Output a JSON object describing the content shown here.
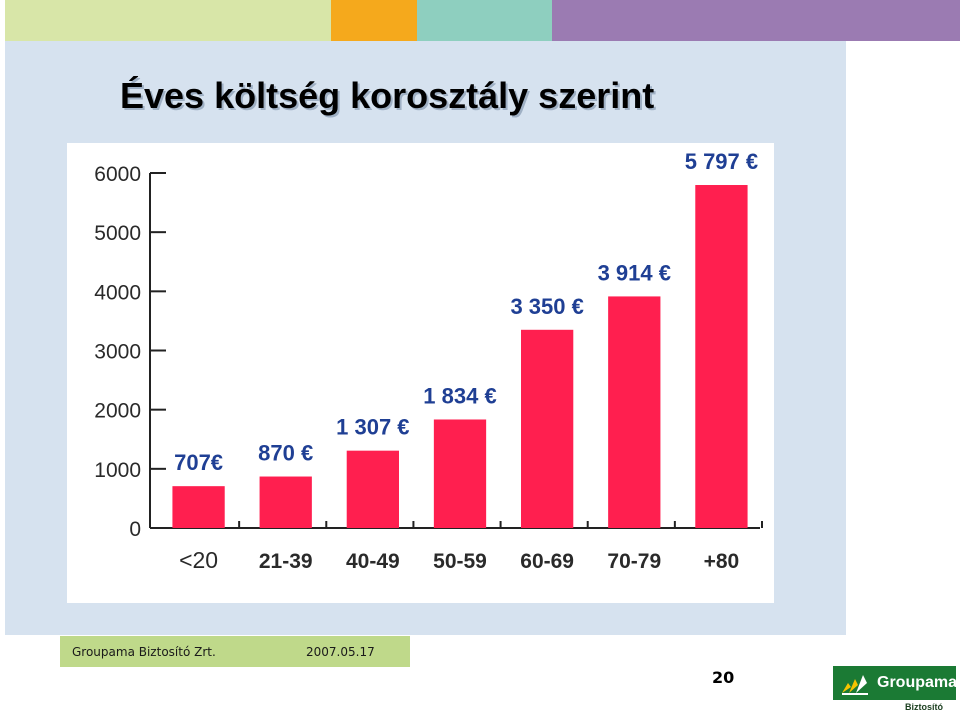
{
  "slide": {
    "title": "Éves költség korosztály szerint",
    "footer_company": "Groupama Biztosító Zrt.",
    "footer_date": "2007.05.17",
    "page_number": "20",
    "logo_name": "Groupama",
    "logo_sub": "Biztosító"
  },
  "colors": {
    "bar": "#ff1f4f",
    "data_label": "#1f3f94",
    "panel": "#d6e2ef",
    "footer_bar": "#bfd98a",
    "top_stripe": [
      "#d8e6a8",
      "#f5a91c",
      "#8ecfbf",
      "#9b7bb2"
    ]
  },
  "chart_data": {
    "type": "bar",
    "title": "",
    "xlabel": "",
    "ylabel": "",
    "categories": [
      "<20",
      "21-39",
      "40-49",
      "50-59",
      "60-69",
      "70-79",
      "+80"
    ],
    "values": [
      707,
      870,
      1307,
      1834,
      3350,
      3914,
      5797
    ],
    "data_labels": [
      "707€",
      "870 €",
      "1 307 €",
      "1 834 €",
      "3 350 €",
      "3 914 €",
      "5 797 €"
    ],
    "yticks": [
      0,
      1000,
      2000,
      3000,
      4000,
      5000,
      6000
    ],
    "ylim": [
      0,
      6000
    ],
    "grid": false,
    "legend": "none"
  }
}
